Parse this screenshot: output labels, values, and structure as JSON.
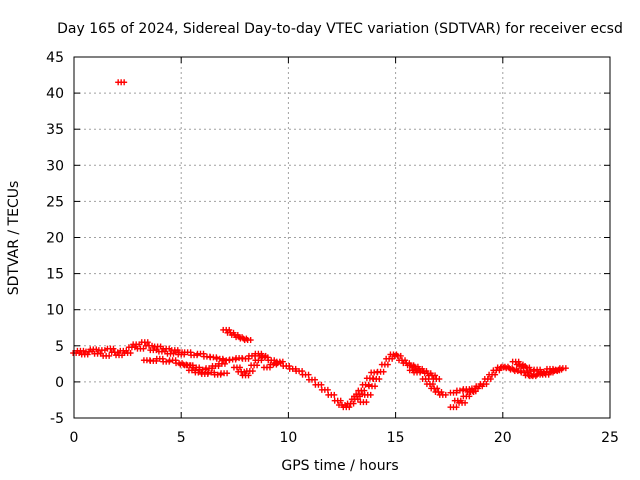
{
  "chart_data": {
    "type": "scatter",
    "title": "Day 165 of 2024, Sidereal Day-to-day VTEC variation (SDTVAR) for receiver ecsd",
    "xlabel": "GPS time / hours",
    "ylabel": "SDTVAR / TECUs",
    "xlim": [
      0,
      25
    ],
    "ylim": [
      -5,
      45
    ],
    "xticks": [
      0,
      5,
      10,
      15,
      20,
      25
    ],
    "yticks": [
      -5,
      0,
      5,
      10,
      15,
      20,
      25,
      30,
      35,
      40,
      45
    ],
    "grid": true,
    "series": [
      {
        "name": "SDTVAR",
        "color": "#ff0000",
        "marker": "plus",
        "points": [
          [
            0.1,
            4.0
          ],
          [
            0.3,
            4.3
          ],
          [
            0.5,
            3.8
          ],
          [
            0.7,
            4.2
          ],
          [
            0.9,
            4.5
          ],
          [
            1.1,
            3.9
          ],
          [
            1.3,
            4.4
          ],
          [
            1.5,
            3.6
          ],
          [
            1.7,
            4.6
          ],
          [
            1.9,
            4.1
          ],
          [
            2.1,
            3.7
          ],
          [
            2.3,
            4.3
          ],
          [
            2.5,
            4.0
          ],
          [
            2.2,
            41.5
          ],
          [
            2.7,
            4.8
          ],
          [
            2.9,
            5.2
          ],
          [
            3.1,
            4.6
          ],
          [
            3.3,
            5.5
          ],
          [
            3.5,
            5.0
          ],
          [
            3.7,
            4.4
          ],
          [
            3.9,
            4.9
          ],
          [
            4.1,
            4.2
          ],
          [
            4.3,
            4.6
          ],
          [
            4.5,
            3.9
          ],
          [
            4.7,
            4.4
          ],
          [
            4.9,
            4.1
          ],
          [
            3.4,
            3.0
          ],
          [
            3.7,
            2.9
          ],
          [
            4.0,
            3.2
          ],
          [
            4.3,
            2.8
          ],
          [
            4.6,
            3.0
          ],
          [
            4.9,
            2.6
          ],
          [
            5.1,
            2.4
          ],
          [
            5.3,
            2.3
          ],
          [
            5.0,
            3.8
          ],
          [
            5.3,
            4.1
          ],
          [
            5.6,
            3.7
          ],
          [
            5.9,
            3.9
          ],
          [
            6.2,
            3.5
          ],
          [
            6.5,
            3.4
          ],
          [
            6.8,
            3.2
          ],
          [
            7.1,
            3.0
          ],
          [
            7.4,
            3.1
          ],
          [
            7.7,
            3.3
          ],
          [
            5.5,
            1.6
          ],
          [
            5.8,
            1.3
          ],
          [
            6.1,
            1.1
          ],
          [
            6.4,
            1.3
          ],
          [
            6.7,
            1.0
          ],
          [
            7.0,
            1.2
          ],
          [
            5.4,
            2.3
          ],
          [
            5.7,
            2.0
          ],
          [
            6.0,
            1.7
          ],
          [
            6.3,
            1.9
          ],
          [
            6.6,
            2.2
          ],
          [
            6.9,
            2.5
          ],
          [
            7.1,
            7.2
          ],
          [
            7.3,
            6.8
          ],
          [
            7.5,
            6.5
          ],
          [
            7.7,
            6.2
          ],
          [
            7.9,
            6.0
          ],
          [
            8.1,
            5.8
          ],
          [
            7.6,
            2.0
          ],
          [
            7.8,
            1.4
          ],
          [
            8.0,
            0.9
          ],
          [
            8.2,
            1.5
          ],
          [
            8.4,
            2.3
          ],
          [
            8.6,
            3.0
          ],
          [
            8.8,
            3.6
          ],
          [
            8.0,
            3.2
          ],
          [
            8.3,
            3.6
          ],
          [
            8.6,
            3.9
          ],
          [
            8.9,
            3.4
          ],
          [
            9.2,
            3.0
          ],
          [
            9.5,
            2.6
          ],
          [
            9.0,
            2.0
          ],
          [
            9.3,
            2.4
          ],
          [
            9.6,
            2.8
          ],
          [
            9.9,
            2.2
          ],
          [
            10.2,
            1.8
          ],
          [
            10.5,
            1.5
          ],
          [
            10.8,
            1.0
          ],
          [
            11.1,
            0.3
          ],
          [
            11.4,
            -0.4
          ],
          [
            11.7,
            -1.1
          ],
          [
            12.0,
            -1.8
          ],
          [
            12.3,
            -2.6
          ],
          [
            12.5,
            -3.2
          ],
          [
            12.7,
            -3.5
          ],
          [
            12.9,
            -3.0
          ],
          [
            13.1,
            -2.4
          ],
          [
            13.3,
            -1.7
          ],
          [
            13.5,
            -2.8
          ],
          [
            13.7,
            -1.8
          ],
          [
            13.9,
            -0.6
          ],
          [
            14.1,
            0.4
          ],
          [
            14.3,
            1.4
          ],
          [
            14.5,
            2.4
          ],
          [
            14.7,
            3.2
          ],
          [
            14.9,
            3.8
          ],
          [
            15.1,
            3.6
          ],
          [
            13.2,
            -2.0
          ],
          [
            13.4,
            -1.2
          ],
          [
            13.6,
            -0.4
          ],
          [
            13.8,
            0.5
          ],
          [
            14.0,
            1.3
          ],
          [
            15.3,
            3.0
          ],
          [
            15.5,
            2.6
          ],
          [
            15.7,
            2.3
          ],
          [
            15.9,
            2.1
          ],
          [
            16.1,
            1.8
          ],
          [
            16.3,
            1.5
          ],
          [
            16.5,
            1.2
          ],
          [
            16.7,
            0.9
          ],
          [
            16.9,
            0.4
          ],
          [
            15.8,
            1.6
          ],
          [
            16.0,
            1.3
          ],
          [
            16.4,
            0.4
          ],
          [
            16.6,
            -0.3
          ],
          [
            16.8,
            -0.9
          ],
          [
            17.0,
            -1.4
          ],
          [
            17.2,
            -1.8
          ],
          [
            17.7,
            -1.5
          ],
          [
            17.7,
            -3.5
          ],
          [
            17.9,
            -2.6
          ],
          [
            18.1,
            -2.9
          ],
          [
            18.3,
            -2.0
          ],
          [
            18.5,
            -1.4
          ],
          [
            18.7,
            -0.9
          ],
          [
            18.9,
            -0.6
          ],
          [
            19.1,
            -0.3
          ],
          [
            18.0,
            -1.2
          ],
          [
            18.3,
            -1.0
          ],
          [
            18.6,
            -1.3
          ],
          [
            19.3,
            0.4
          ],
          [
            19.5,
            1.0
          ],
          [
            19.7,
            1.6
          ],
          [
            19.9,
            2.0
          ],
          [
            20.1,
            2.1
          ],
          [
            20.3,
            1.9
          ],
          [
            20.5,
            1.7
          ],
          [
            20.7,
            1.5
          ],
          [
            20.9,
            2.2
          ],
          [
            21.1,
            2.0
          ],
          [
            20.6,
            2.8
          ],
          [
            20.8,
            2.4
          ],
          [
            21.0,
            1.3
          ],
          [
            21.2,
            0.9
          ],
          [
            21.4,
            0.8
          ],
          [
            21.6,
            1.0
          ],
          [
            21.8,
            1.2
          ],
          [
            22.0,
            1.0
          ],
          [
            22.2,
            1.3
          ],
          [
            22.4,
            1.5
          ],
          [
            22.6,
            1.7
          ],
          [
            22.8,
            1.9
          ],
          [
            21.3,
            1.5
          ],
          [
            21.6,
            1.7
          ],
          [
            21.9,
            1.4
          ],
          [
            22.2,
            1.8
          ],
          [
            22.5,
            1.6
          ]
        ]
      }
    ]
  }
}
